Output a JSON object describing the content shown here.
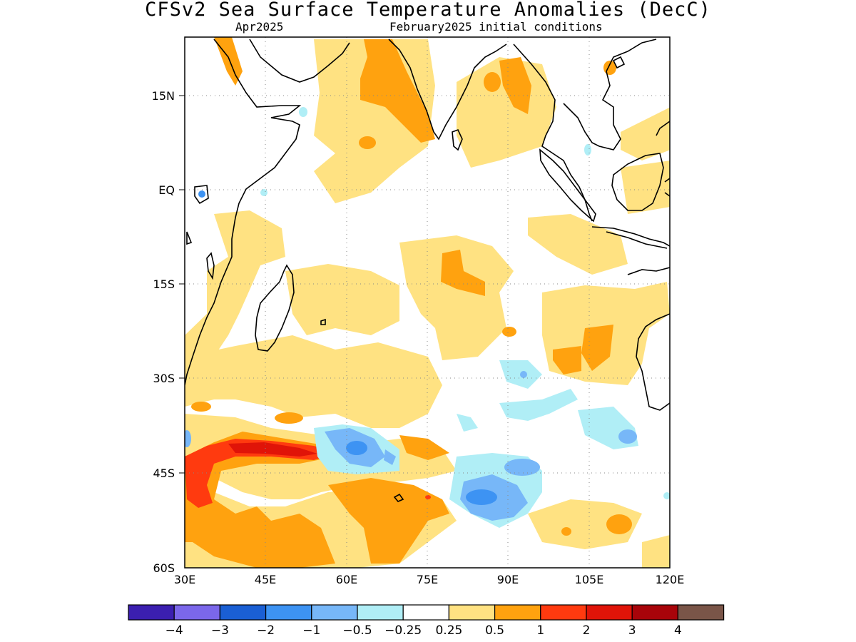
{
  "header": {
    "title": "CFSv2 Sea Surface Temperature Anomalies (DecC)",
    "valid_month": "Apr2025",
    "initial_conditions": "February2025 initial conditions"
  },
  "map": {
    "region": "Indian Ocean",
    "lon_range": [
      30,
      120
    ],
    "lat_range": [
      -60,
      24
    ],
    "lat_ticks": [
      {
        "value": 15,
        "label": "15N"
      },
      {
        "value": 0,
        "label": "EQ"
      },
      {
        "value": -15,
        "label": "15S"
      },
      {
        "value": -30,
        "label": "30S"
      },
      {
        "value": -45,
        "label": "45S"
      },
      {
        "value": -60,
        "label": "60S"
      }
    ],
    "lon_ticks": [
      {
        "value": 30,
        "label": "30E"
      },
      {
        "value": 45,
        "label": "45E"
      },
      {
        "value": 60,
        "label": "60E"
      },
      {
        "value": 75,
        "label": "75E"
      },
      {
        "value": 90,
        "label": "90E"
      },
      {
        "value": 105,
        "label": "105E"
      },
      {
        "value": 120,
        "label": "120E"
      }
    ],
    "gridlines": "dotted",
    "coastlines": "black"
  },
  "colorbar": {
    "colors": [
      "#3b1fb0",
      "#7b67ea",
      "#1a5fd4",
      "#3d93f3",
      "#77b7f8",
      "#b0eef6",
      "#ffffff",
      "#ffe282",
      "#ffa20f",
      "#ff3a0f",
      "#e01408",
      "#a8040a",
      "#7a5548"
    ],
    "labels": [
      "−4",
      "−3",
      "−2",
      "−1",
      "−0.5",
      "−0.25",
      "0.25",
      "0.5",
      "1",
      "2",
      "3",
      "4"
    ]
  }
}
